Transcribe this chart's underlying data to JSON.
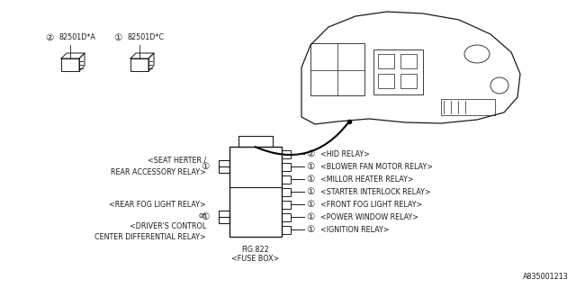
{
  "bg_color": "#ffffff",
  "line_color": "#1a1a1a",
  "text_color": "#1a1a1a",
  "part1_label": "82501D*A",
  "part1_num": "2",
  "part2_label": "82501D*C",
  "part2_num": "1",
  "fig_label": "FIG.822",
  "fig_sublabel": "<FUSE BOX>",
  "diagram_id": "A835001213",
  "right_labels": [
    {
      "text": "<HID RELAY>",
      "num": "2"
    },
    {
      "text": "<BLOWER FAN MOTOR RELAY>",
      "num": "1"
    },
    {
      "text": "<MILLOR HEATER RELAY>",
      "num": "1"
    },
    {
      "text": "<STARTER INTERLOCK RELAY>",
      "num": "1"
    },
    {
      "text": "<FRONT FOG LIGHT RELAY>",
      "num": "1"
    },
    {
      "text": "<POWER WINDOW RELAY>",
      "num": "1"
    },
    {
      "text": "<IGNITION RELAY>",
      "num": "1"
    }
  ]
}
